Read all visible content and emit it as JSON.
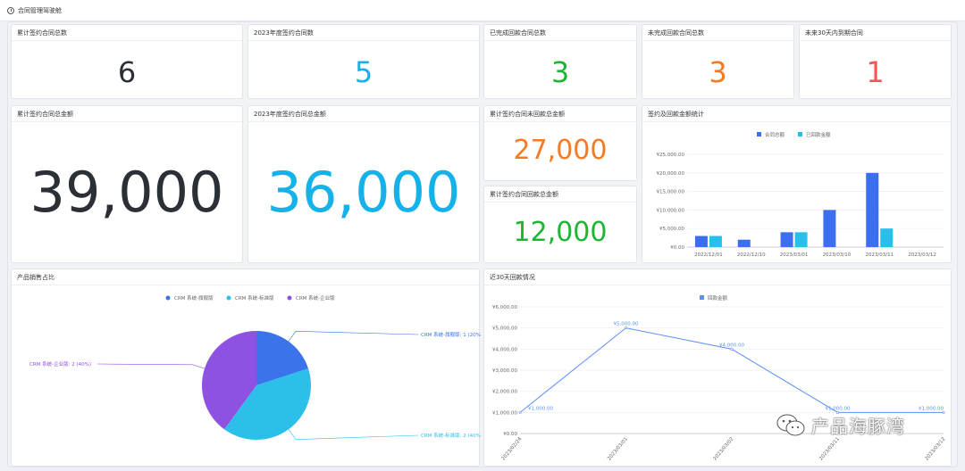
{
  "page": {
    "title": "合同管理驾驶舱"
  },
  "kpis": [
    {
      "label": "累计签约合同总数",
      "value": "6",
      "color": "#2b2f36"
    },
    {
      "label": "2023年度签约合同数",
      "value": "5",
      "color": "#15b2ea"
    },
    {
      "label": "已完成回款合同总数",
      "value": "3",
      "color": "#1fb534"
    },
    {
      "label": "未完成回款合同总数",
      "value": "3",
      "color": "#f47b23"
    },
    {
      "label": "未来30天内到期合同",
      "value": "1",
      "color": "#f25655"
    }
  ],
  "amounts": {
    "total_label": "累计签约合同总金额",
    "total_value": "39,000",
    "year_label": "2023年度签约合同总金额",
    "year_value": "36,000",
    "unpaid_label": "累计签约合同未回款总金额",
    "unpaid_value": "27,000",
    "paid_label": "累计签约合同回款总金额",
    "paid_value": "12,000"
  },
  "bar_card": {
    "title": "签约及回款金额统计"
  },
  "pie_card": {
    "title": "产品销售占比"
  },
  "line_card": {
    "title": "近30天回款情况"
  },
  "watermark": {
    "text": "产品海豚湾"
  },
  "chart_data": [
    {
      "type": "bar",
      "title": "签约及回款金额统计",
      "categories": [
        "2022/12/01",
        "2022/12/10",
        "2023/03/01",
        "2023/03/10",
        "2023/03/11",
        "2023/03/12"
      ],
      "series": [
        {
          "name": "合同总额",
          "color": "#3b6ff0",
          "values": [
            3000,
            2000,
            4000,
            10000,
            20000,
            0
          ]
        },
        {
          "name": "已回款金额",
          "color": "#26c0ea",
          "values": [
            3000,
            0,
            4000,
            0,
            5000,
            0
          ]
        }
      ],
      "yticks": [
        "¥0.00",
        "¥5,000.00",
        "¥10,000.00",
        "¥15,000.00",
        "¥20,000.00",
        "¥25,000.00"
      ],
      "ylim": [
        0,
        25000
      ],
      "legend": "top-center",
      "grid": true
    },
    {
      "type": "pie",
      "title": "产品销售占比",
      "slices": [
        {
          "name": "CRM 系统-旗舰版",
          "value": 1,
          "label": "CRM 系统-旗舰版: 1 (20%)",
          "color": "#3b73ea"
        },
        {
          "name": "CRM 系统-标准版",
          "value": 2,
          "label": "CRM 系统-标准版: 2 (40%)",
          "color": "#2bbfe9"
        },
        {
          "name": "CRM 系统-企业版",
          "value": 2,
          "label": "CRM 系统-企业版: 2 (40%)",
          "color": "#8e52e3"
        }
      ],
      "legend": "top-center"
    },
    {
      "type": "line",
      "title": "近30天回款情况",
      "x": [
        "2023/02/24",
        "2023/03/01",
        "2023/03/02",
        "2023/03/11",
        "2023/03/12"
      ],
      "series": [
        {
          "name": "回款金额",
          "color": "#5b8ff2",
          "values": [
            1000,
            5000,
            4000,
            1000,
            1000
          ],
          "labels": [
            "¥1,000.00",
            "¥5,000.00",
            "¥4,000.00",
            "¥1,000.00",
            "¥1,000.00"
          ]
        }
      ],
      "yticks": [
        "¥0.00",
        "¥1,000.00",
        "¥2,000.00",
        "¥3,000.00",
        "¥4,000.00",
        "¥5,000.00",
        "¥6,000.00"
      ],
      "ylim": [
        0,
        6000
      ],
      "legend": "top-center",
      "grid": true
    }
  ]
}
